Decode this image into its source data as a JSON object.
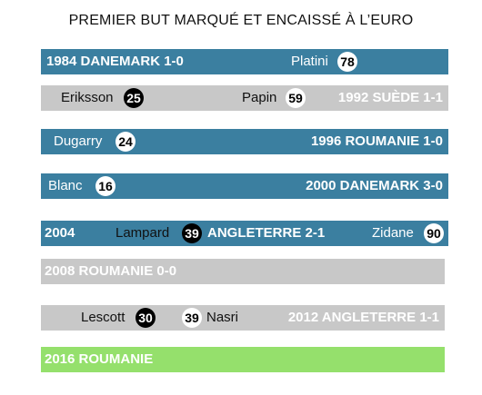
{
  "title": "PREMIER BUT MARQUÉ ET ENCAISSÉ À L’EURO",
  "colors": {
    "blue": "#3b7fa0",
    "gray": "#c8c8c8",
    "green": "#95e06c"
  },
  "chart_data": {
    "type": "table",
    "title": "PREMIER BUT MARQUÉ ET ENCAISSÉ À L’EURO",
    "rows": [
      {
        "label": "1984 DANEMARK 1-0",
        "scorer": "Platini",
        "minute": "78"
      },
      {
        "label": "1992 SUÈDE 1-1",
        "scorer": "Papin",
        "minute": "59",
        "conceded_by": "Eriksson",
        "conceded_minute": "25"
      },
      {
        "label": "1996 ROUMANIE 1-0",
        "scorer": "Dugarry",
        "minute": "24"
      },
      {
        "label": "2000 DANEMARK 3-0",
        "scorer": "Blanc",
        "minute": "16"
      },
      {
        "year": "2004",
        "label": "ANGLETERRE 2-1",
        "conceded_by": "Lampard",
        "conceded_minute": "39",
        "scorer": "Zidane",
        "minute": "90"
      },
      {
        "label": "2008 ROUMANIE 0-0"
      },
      {
        "label": "2012 ANGLETERRE 1-1",
        "conceded_by": "Lescott",
        "conceded_minute": "30",
        "scorer": "Nasri",
        "minute": "39"
      },
      {
        "label": "2016 ROUMANIE"
      }
    ]
  }
}
